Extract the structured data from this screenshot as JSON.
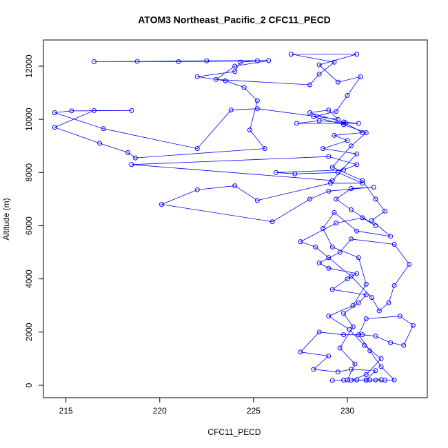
{
  "chart_data": {
    "type": "line",
    "markers": true,
    "color": "#0000ff",
    "title": "ATOM3 Northeast_Pacific_2 CFC11_PECD",
    "x_label": "CFC11_PECD",
    "y_label": "Altitude (m)",
    "xlim": [
      213.8,
      234.26
    ],
    "ylim": [
      -467,
      12985
    ],
    "xticks": [
      215,
      220,
      225,
      230
    ],
    "yticks": [
      0,
      2000,
      4000,
      6000,
      8000,
      10000,
      12000
    ],
    "x": [
      229.2,
      229.8,
      230.5,
      231.0,
      231.5,
      232.0,
      232.5,
      231.8,
      231.2,
      230.6,
      231.0,
      232.8,
      233.5,
      233.0,
      232.3,
      231.5,
      230.8,
      229.8,
      228.5,
      227.5,
      229.0,
      228.2,
      229.5,
      230.2,
      231.5,
      231.0,
      230.0,
      230.4,
      229.6,
      230.3,
      229.8,
      230.6,
      231.0,
      229.2,
      230.0,
      230.5,
      229.0,
      228.5,
      229.6,
      230.2,
      232.5,
      233.3,
      232.5,
      232.2,
      231.7,
      231.3,
      230.2,
      229.0,
      228.3,
      227.5,
      229.4,
      230.8,
      231.5,
      230.2,
      229.4,
      230.2,
      231.4,
      229.0,
      228.0,
      226.0,
      220.1,
      222.0,
      224.0,
      225.2,
      229.1,
      230.8,
      229.5,
      227.2,
      226.2,
      229.8,
      230.5,
      229.0,
      218.5,
      229.2,
      230.5,
      228.7,
      230.0,
      229.3,
      230.8,
      229.8,
      230.6,
      227.3,
      228.5,
      229.9,
      228.0,
      229.0,
      229.5,
      225.2,
      223.8,
      222.0,
      217.0,
      214.4,
      215.3,
      218.5,
      216.5,
      214.4,
      216.8,
      218.3,
      218.7,
      225.6,
      224.8,
      225.2,
      224.5,
      223.5,
      222.0,
      224.0,
      224.3,
      225.2,
      221.0,
      216.5,
      218.8,
      222.5,
      225.8,
      224.0,
      223.0,
      228.0,
      228.5,
      229.3,
      227.0,
      230.5,
      228.5,
      229.5,
      230.7,
      230.0,
      229.4,
      228.2,
      229.8,
      231.0,
      230.2,
      229.2,
      230.8,
      231.5,
      232.0,
      231.3,
      232.3,
      230.5,
      229.3,
      228.7,
      229.2,
      230.6,
      231.0,
      230.3,
      229.0,
      230.1,
      230.9,
      231.8,
      231.0,
      230.2,
      231.2,
      231.8
    ],
    "values": [
      180,
      190,
      200,
      190,
      200,
      190,
      200,
      700,
      1300,
      1900,
      2500,
      2600,
      2250,
      1500,
      1600,
      1850,
      1900,
      1900,
      2000,
      1250,
      1100,
      600,
      500,
      600,
      550,
      200,
      200,
      800,
      1400,
      2200,
      2700,
      3100,
      3400,
      3600,
      4000,
      4200,
      4400,
      4600,
      5000,
      5500,
      5300,
      4550,
      3750,
      3100,
      2800,
      3300,
      4100,
      4800,
      5200,
      5400,
      6100,
      6300,
      6000,
      6600,
      7000,
      7400,
      7450,
      7300,
      7000,
      6150,
      6800,
      7350,
      7500,
      6950,
      7600,
      7600,
      8000,
      7950,
      8000,
      8100,
      8300,
      8600,
      8300,
      7700,
      8700,
      8900,
      9200,
      9400,
      9500,
      9900,
      9850,
      9850,
      9950,
      9870,
      10250,
      10350,
      10000,
      10400,
      10350,
      8900,
      9650,
      10250,
      10320,
      10330,
      10330,
      9700,
      9100,
      8750,
      8550,
      8900,
      9600,
      10700,
      11200,
      11450,
      11600,
      11800,
      12150,
      12200,
      12170,
      12170,
      12180,
      12200,
      12210,
      12000,
      11500,
      11300,
      11700,
      12150,
      12450,
      12450,
      12050,
      11400,
      11600,
      10900,
      10300,
      10100,
      9800,
      9500,
      9000,
      8200,
      7700,
      7000,
      6550,
      6200,
      5600,
      5800,
      6500,
      5900,
      5200,
      4800,
      3800,
      3000,
      2600,
      2100,
      1500,
      1000,
      400,
      190,
      200,
      210
    ]
  }
}
